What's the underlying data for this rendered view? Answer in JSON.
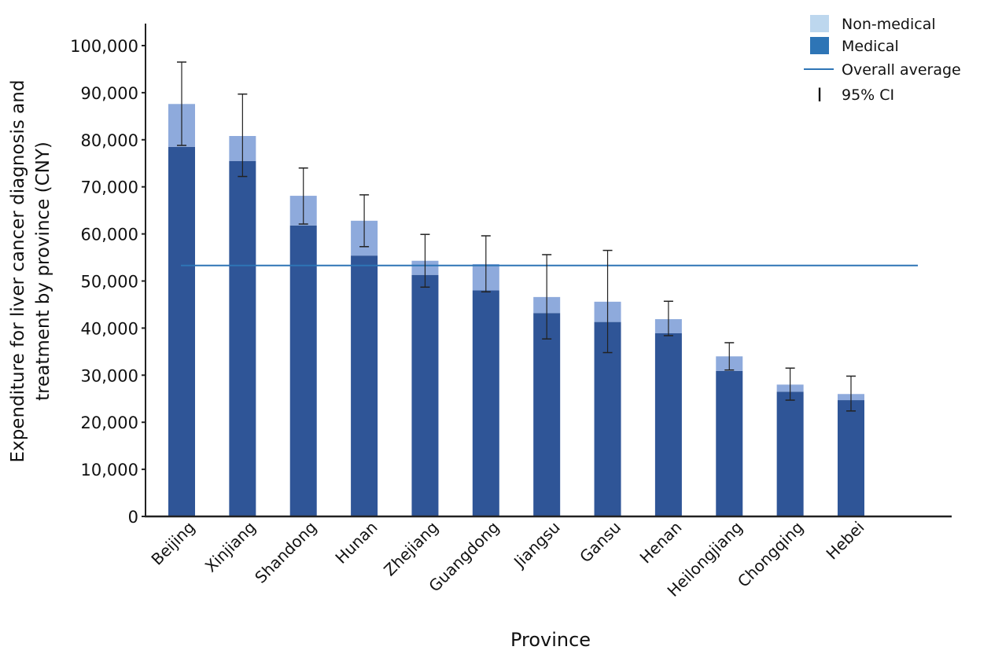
{
  "chart_data": {
    "type": "bar",
    "stacked": true,
    "title": "",
    "xlabel": "Province",
    "ylabel_lines": [
      "Expenditure for liver cancer diagnosis and",
      "treatment by province (CNY)"
    ],
    "ylim": [
      0,
      100000
    ],
    "yticks": [
      0,
      10000,
      20000,
      30000,
      40000,
      50000,
      60000,
      70000,
      80000,
      90000,
      100000
    ],
    "ytick_labels": [
      "0",
      "10,000",
      "20,000",
      "30,000",
      "40,000",
      "50,000",
      "60,000",
      "70,000",
      "80,000",
      "90,000",
      "100,000"
    ],
    "categories": [
      "Beijing",
      "Xinjiang",
      "Shandong",
      "Hunan",
      "Zhejiang",
      "Guangdong",
      "Jiangsu",
      "Gansu",
      "Henan",
      "Heilongjiang",
      "Chongqing",
      "Hebei"
    ],
    "series": [
      {
        "name": "Medical",
        "color": "#2f5597",
        "values": [
          78500,
          75500,
          61800,
          55400,
          51300,
          48000,
          43200,
          41300,
          38900,
          30900,
          26500,
          24700
        ]
      },
      {
        "name": "Non-medical",
        "color": "#8eaadc",
        "values": [
          9100,
          5300,
          6300,
          7400,
          3000,
          5600,
          3400,
          4300,
          3000,
          3100,
          1500,
          1300
        ]
      }
    ],
    "totals": [
      87600,
      80800,
      68100,
      62800,
      54300,
      53600,
      46600,
      45600,
      41900,
      34000,
      28000,
      26000
    ],
    "ci95": [
      [
        78800,
        96500
      ],
      [
        72200,
        89700
      ],
      [
        62100,
        74000
      ],
      [
        57300,
        68300
      ],
      [
        48700,
        59900
      ],
      [
        47700,
        59600
      ],
      [
        37700,
        55600
      ],
      [
        34800,
        56500
      ],
      [
        38400,
        45700
      ],
      [
        31100,
        36900
      ],
      [
        24700,
        31500
      ],
      [
        22400,
        29800
      ]
    ],
    "overall_average": 53300,
    "average_color": "#2e75b6",
    "grid": false,
    "legend": {
      "placement": "top-right",
      "entries": [
        {
          "label": "Non-medical",
          "color": "#bdd7ee"
        },
        {
          "label": "Medical",
          "color": "#2e75b6"
        },
        {
          "label": "Overall average",
          "color": "#2e75b6"
        },
        {
          "label": "95% CI",
          "symbol": "I"
        }
      ]
    }
  }
}
